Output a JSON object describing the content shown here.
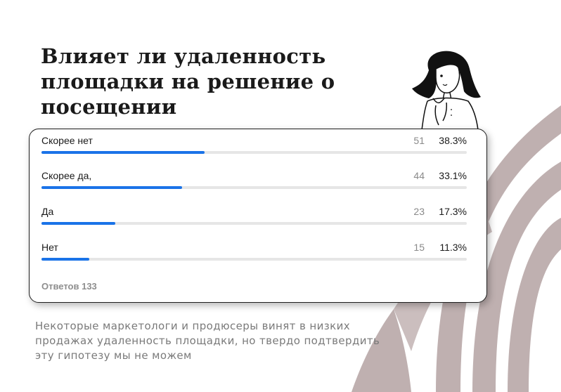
{
  "title": "Влияет ли удаленность площадки на решение о посещении",
  "chart_data": {
    "type": "bar",
    "categories": [
      "Скорее нет",
      "Скорее да,",
      "Да",
      "Нет"
    ],
    "values": [
      51,
      44,
      23,
      15
    ],
    "percent_labels": [
      "38.3%",
      "33.1%",
      "17.3%",
      "11.3%"
    ],
    "total_label": "Ответов 133",
    "xlim": [
      0,
      133
    ],
    "bar_color": "#1a73e8",
    "track_color": "#e6e6e6"
  },
  "caption": "Некоторые маркетологи и продюсеры винят в низких продажах удаленность площадки, но твердо подтвердить эту гипотезу мы не можем",
  "colors": {
    "arch": "#b9a8a8",
    "text": "#1a1a1a",
    "muted": "#7a7a7a"
  },
  "illustration_icon": "thinking-woman-illustration"
}
